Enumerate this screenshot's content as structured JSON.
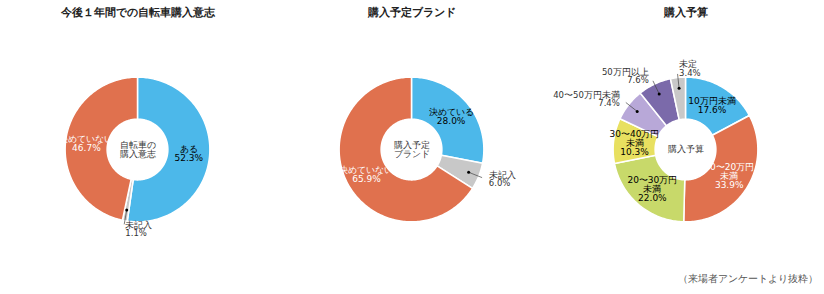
{
  "chart_data": [
    {
      "type": "pie",
      "title": "今後１年間での自転車購入意志",
      "categories": [
        "ある",
        "未記入",
        "決めていない"
      ],
      "values": [
        52.3,
        1.1,
        46.7
      ],
      "value_labels": [
        "52.3%",
        "1.1%",
        "46.7%"
      ],
      "colors": [
        "#4cb8ea",
        "#c8c8c8",
        "#e0714e"
      ],
      "data_labels": true,
      "annotations": [
        "自転車の\n購入意志"
      ]
    },
    {
      "type": "pie",
      "title": "購入予定ブランド",
      "categories": [
        "決めている",
        "未記入",
        "決めていない"
      ],
      "values": [
        28.0,
        6.0,
        65.9
      ],
      "value_labels": [
        "28.0%",
        "6.0%",
        "65.9%"
      ],
      "colors": [
        "#4cb8ea",
        "#c8c8c8",
        "#e0714e"
      ],
      "data_labels": true,
      "annotations": [
        "購入予定\nブランド"
      ]
    },
    {
      "type": "pie",
      "title": "購入予算",
      "categories": [
        "10万円未満",
        "10〜20万円\n未満",
        "20〜30万円\n未満",
        "30〜40万円\n未満",
        "40〜50万円未満",
        "50万円以上",
        "未定"
      ],
      "values": [
        17.6,
        33.9,
        22.0,
        10.3,
        7.4,
        7.6,
        3.4
      ],
      "value_labels": [
        "17.6%",
        "33.9%",
        "22.0%",
        "10.3%",
        "7.4%",
        "7.6%",
        "3.4%"
      ],
      "colors": [
        "#4cb8ea",
        "#e0714e",
        "#c8d96a",
        "#e8e060",
        "#b8a8d8",
        "#7b6aaa",
        "#c8c8c8"
      ],
      "data_labels": true,
      "annotations": [
        "購入予算"
      ]
    }
  ],
  "caption": "（来場者アンケートより抜粋）"
}
